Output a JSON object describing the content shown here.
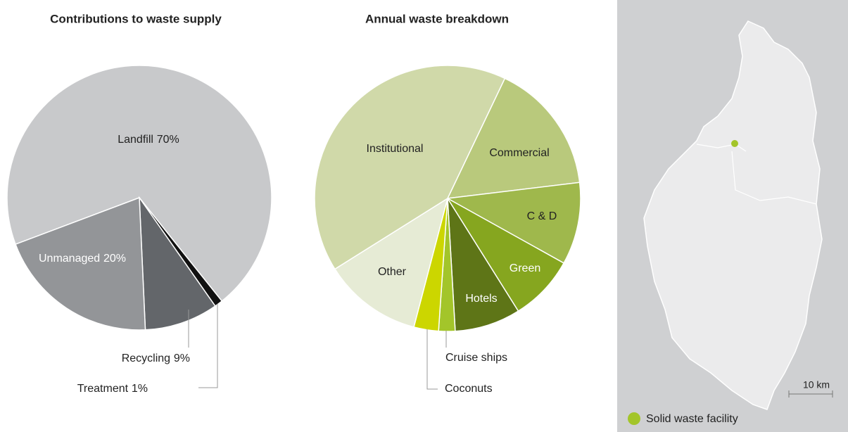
{
  "chart_data": [
    {
      "type": "pie",
      "title": "Contributions to waste supply",
      "categories": [
        "Landfill",
        "Treatment",
        "Recycling",
        "Unmanaged"
      ],
      "values": [
        70,
        1,
        9,
        20
      ],
      "value_labels": [
        "70%",
        "1%",
        "9%",
        "20%"
      ],
      "colors": [
        "#c8c9cb",
        "#111111",
        "#63666a",
        "#939598"
      ]
    },
    {
      "type": "pie",
      "title": "Annual waste breakdown",
      "categories": [
        "Commercial",
        "C & D",
        "Green",
        "Hotels",
        "Cruise ships",
        "Coconuts",
        "Other",
        "Institutional"
      ],
      "values": [
        16,
        10,
        8,
        8,
        2,
        3,
        12,
        41
      ],
      "colors": [
        "#b9c97c",
        "#9fb84c",
        "#86a61f",
        "#5e7517",
        "#a3c52a",
        "#ccd600",
        "#e6ebd5",
        "#d0d9a9"
      ]
    }
  ],
  "map": {
    "scale_label": "10 km",
    "legend": "Solid waste facility"
  }
}
